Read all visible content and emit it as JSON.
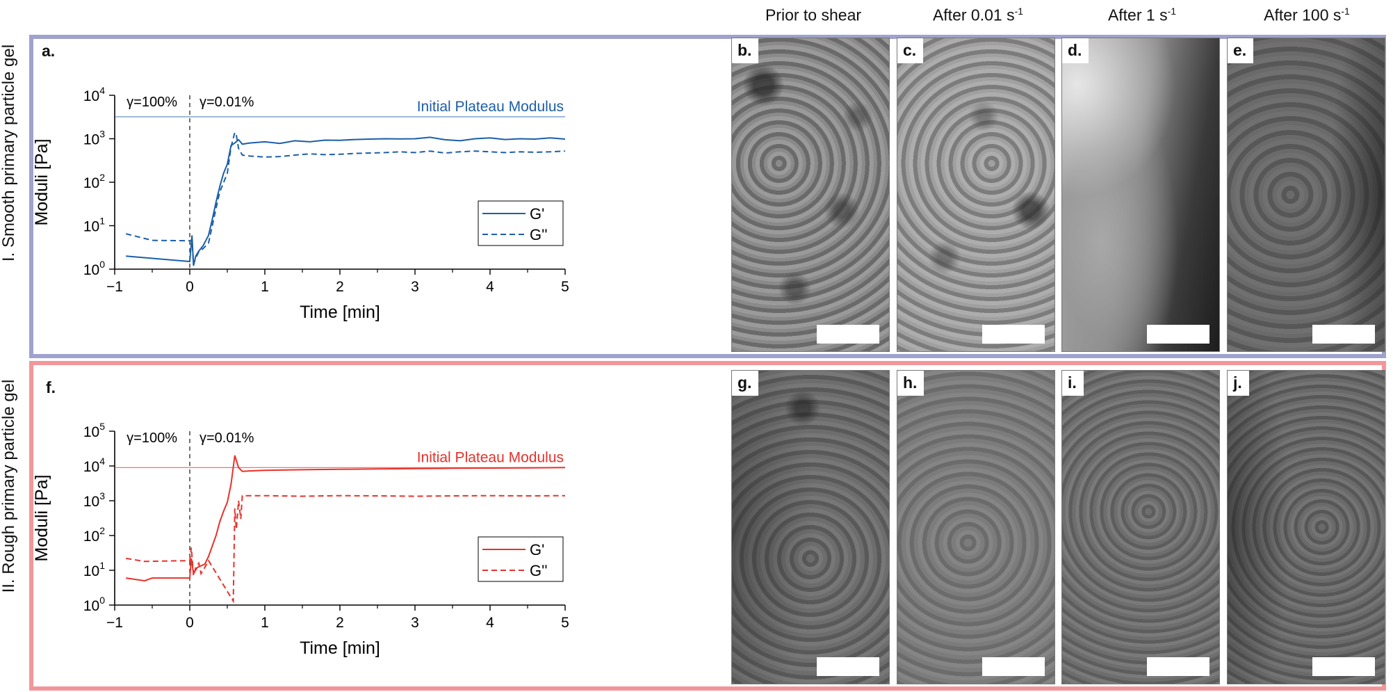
{
  "column_headers": [
    {
      "text": "Prior to shear",
      "sup": ""
    },
    {
      "text": "After 0.01 s",
      "sup": "-1"
    },
    {
      "text": "After 1 s",
      "sup": "-1"
    },
    {
      "text": "After 100 s",
      "sup": "-1"
    }
  ],
  "rows": [
    {
      "label": "I. Smooth primary particle gel",
      "frame_color": "#9fa2cc",
      "chart_letter": "a.",
      "image_letters": [
        "b.",
        "c.",
        "d.",
        "e."
      ]
    },
    {
      "label": "II. Rough primary particle gel",
      "frame_color": "#f2969a",
      "chart_letter": "f.",
      "image_letters": [
        "g.",
        "h.",
        "i.",
        "j."
      ]
    }
  ],
  "chart_data": [
    {
      "type": "line",
      "title": "",
      "xlabel": "Time [min]",
      "ylabel": "Moduli [Pa]",
      "xlim": [
        -1,
        5
      ],
      "xticks": [
        -1,
        0,
        1,
        2,
        3,
        4,
        5
      ],
      "yscale": "log",
      "ylim": [
        1,
        10000
      ],
      "yticks": [
        {
          "base": "10",
          "exp": "0"
        },
        {
          "base": "10",
          "exp": "1"
        },
        {
          "base": "10",
          "exp": "2"
        },
        {
          "base": "10",
          "exp": "3"
        },
        {
          "base": "10",
          "exp": "4"
        }
      ],
      "color": "#1b5ea8",
      "annotations": {
        "left": "γ=100%",
        "right": "γ=0.01%",
        "vline_x": 0
      },
      "plateau": {
        "label": "Initial Plateau Modulus",
        "y": 3200
      },
      "legend": {
        "placement": "right",
        "entries": [
          "G'",
          "G''"
        ]
      },
      "series": [
        {
          "name": "G'",
          "style": "solid",
          "x": [
            -0.85,
            0.0,
            0.03,
            0.05,
            0.08,
            0.12,
            0.18,
            0.25,
            0.3,
            0.35,
            0.4,
            0.45,
            0.5,
            0.55,
            0.6,
            0.65,
            0.7,
            0.8,
            1.0,
            1.2,
            1.4,
            1.6,
            1.8,
            2.0,
            2.2,
            2.4,
            2.6,
            2.8,
            3.0,
            3.2,
            3.4,
            3.6,
            3.8,
            4.0,
            4.2,
            4.4,
            4.6,
            4.8,
            5.0
          ],
          "y": [
            2.0,
            1.5,
            6.0,
            1.2,
            2.0,
            2.6,
            3.5,
            6.0,
            14,
            35,
            80,
            160,
            260,
            700,
            800,
            950,
            750,
            800,
            850,
            780,
            900,
            850,
            930,
            920,
            960,
            980,
            1000,
            990,
            1000,
            1080,
            950,
            900,
            1000,
            1050,
            960,
            1000,
            980,
            1050,
            980
          ]
        },
        {
          "name": "G''",
          "style": "dashed",
          "x": [
            -0.85,
            -0.5,
            0.0,
            0.03,
            0.05,
            0.08,
            0.12,
            0.18,
            0.25,
            0.3,
            0.35,
            0.4,
            0.5,
            0.55,
            0.6,
            0.62,
            0.65,
            0.7,
            0.8,
            1.0,
            1.2,
            1.4,
            1.6,
            1.8,
            2.0,
            2.2,
            2.4,
            2.6,
            2.8,
            3.0,
            3.2,
            3.4,
            3.6,
            3.8,
            4.0,
            4.2,
            4.4,
            4.6,
            4.8,
            5.0
          ],
          "y": [
            6.5,
            4.6,
            4.5,
            4.7,
            1.3,
            1.8,
            2.5,
            3.0,
            4.0,
            10,
            25,
            60,
            160,
            650,
            1400,
            1200,
            600,
            420,
            400,
            380,
            390,
            420,
            450,
            430,
            440,
            460,
            470,
            480,
            500,
            480,
            520,
            470,
            500,
            520,
            500,
            480,
            500,
            490,
            500,
            520
          ]
        }
      ]
    },
    {
      "type": "line",
      "title": "",
      "xlabel": "Time [min]",
      "ylabel": "Moduli [Pa]",
      "xlim": [
        -1,
        5
      ],
      "xticks": [
        -1,
        0,
        1,
        2,
        3,
        4,
        5
      ],
      "yscale": "log",
      "ylim": [
        1,
        100000
      ],
      "yticks": [
        {
          "base": "10",
          "exp": "0"
        },
        {
          "base": "10",
          "exp": "1"
        },
        {
          "base": "10",
          "exp": "2"
        },
        {
          "base": "10",
          "exp": "3"
        },
        {
          "base": "10",
          "exp": "4"
        },
        {
          "base": "10",
          "exp": "5"
        }
      ],
      "color": "#e8312a",
      "annotations": {
        "left": "γ=100%",
        "right": "γ=0.01%",
        "vline_x": 0
      },
      "plateau": {
        "label": "Initial Plateau Modulus",
        "y": 9000
      },
      "legend": {
        "placement": "right",
        "entries": [
          "G'",
          "G''"
        ]
      },
      "series": [
        {
          "name": "G'",
          "style": "solid",
          "x": [
            -0.85,
            -0.6,
            -0.5,
            0.0,
            0.02,
            0.05,
            0.1,
            0.2,
            0.25,
            0.3,
            0.35,
            0.4,
            0.45,
            0.5,
            0.55,
            0.6,
            0.65,
            0.7,
            0.8,
            1.0,
            1.5,
            2.0,
            2.5,
            3.0,
            3.5,
            4.0,
            4.5,
            5.0
          ],
          "y": [
            6.0,
            5.0,
            6.0,
            6.0,
            22,
            8.0,
            12,
            15,
            25,
            50,
            100,
            250,
            500,
            900,
            3000,
            20000,
            9000,
            7000,
            7200,
            7500,
            7800,
            8000,
            8200,
            8400,
            8600,
            8700,
            8800,
            9000
          ]
        },
        {
          "name": "G''",
          "style": "dashed",
          "x": [
            -0.85,
            -0.6,
            0.0,
            0.02,
            0.05,
            0.08,
            0.12,
            0.15,
            0.2,
            0.25,
            0.58,
            0.6,
            0.62,
            0.65,
            0.68,
            0.7,
            1.0,
            1.5,
            2.0,
            2.5,
            3.0,
            3.5,
            4.0,
            4.5,
            5.0
          ],
          "y": [
            22,
            18,
            19,
            45,
            7,
            12,
            16,
            8,
            12,
            19,
            1.3,
            600,
            150,
            1000,
            300,
            1400,
            1400,
            1350,
            1400,
            1380,
            1350,
            1380,
            1400,
            1380,
            1400
          ]
        }
      ]
    }
  ]
}
